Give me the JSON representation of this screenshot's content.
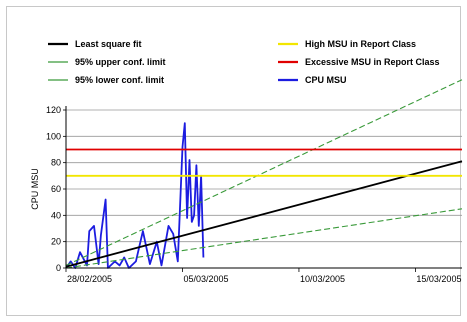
{
  "chart_data": {
    "type": "line",
    "title": "",
    "xlabel": "",
    "ylabel": "CPU MSU",
    "ylim": [
      0,
      120
    ],
    "y_ticks": [
      "0",
      "20",
      "40",
      "60",
      "80",
      "100",
      "120"
    ],
    "x_ticks": [
      "28/02/2005",
      "05/03/2005",
      "10/03/2005",
      "15/03/2005"
    ],
    "xlim": [
      "2005-02-28",
      "2005-03-17"
    ],
    "grid": true,
    "legend_position": "top",
    "legend": [
      {
        "label": "Least square fit",
        "color": "#000000"
      },
      {
        "label": "High MSU in Report Class",
        "color": "#f2e600"
      },
      {
        "label": "95% upper conf. limit",
        "color": "#3a9a3a"
      },
      {
        "label": "Excessive MSU in Report Class",
        "color": "#e00000"
      },
      {
        "label": "95% lower conf. limit",
        "color": "#3a9a3a"
      },
      {
        "label": "CPU MSU",
        "color": "#1c1ce0"
      }
    ],
    "series": [
      {
        "name": "CPU MSU",
        "color": "#1c1ce0",
        "x": [
          "2005-02-28T00:00",
          "2005-02-28T04:48",
          "2005-02-28T09:36",
          "2005-02-28T14:24",
          "2005-02-28T21:36",
          "2005-03-01T00:00",
          "2005-03-01T04:48",
          "2005-03-01T09:36",
          "2005-03-01T12:00",
          "2005-03-01T16:48",
          "2005-03-01T19:12",
          "2005-03-02T02:24",
          "2005-03-02T07:12",
          "2005-03-02T12:00",
          "2005-03-02T16:48",
          "2005-03-03T00:00",
          "2005-03-03T07:12",
          "2005-03-03T14:24",
          "2005-03-03T21:36",
          "2005-03-04T02:24",
          "2005-03-04T09:36",
          "2005-03-04T14:24",
          "2005-03-04T19:12",
          "2005-03-05T00:00",
          "2005-03-05T02:24",
          "2005-03-05T04:48",
          "2005-03-05T07:12",
          "2005-03-05T09:36",
          "2005-03-05T12:00",
          "2005-03-05T14:24",
          "2005-03-05T16:48",
          "2005-03-05T19:12",
          "2005-03-05T21:36"
        ],
        "values": [
          0,
          5,
          0,
          12,
          2,
          28,
          32,
          3,
          25,
          52,
          0,
          5,
          2,
          8,
          0,
          5,
          28,
          3,
          20,
          2,
          32,
          26,
          5,
          92,
          110,
          38,
          82,
          35,
          40,
          78,
          32,
          70,
          8
        ]
      },
      {
        "name": "Least square fit",
        "color": "#000000",
        "x": [
          "2005-02-28",
          "2005-03-17"
        ],
        "values": [
          1,
          81
        ]
      },
      {
        "name": "95% upper conf. limit",
        "color": "#3a9a3a",
        "dashed": true,
        "x": [
          "2005-02-28",
          "2005-03-17"
        ],
        "values": [
          2,
          143
        ]
      },
      {
        "name": "95% lower conf. limit",
        "color": "#3a9a3a",
        "dashed": true,
        "x": [
          "2005-02-28",
          "2005-03-17"
        ],
        "values": [
          0,
          45
        ]
      },
      {
        "name": "High MSU in Report Class",
        "color": "#f2e600",
        "x": [
          "2005-02-28",
          "2005-03-17"
        ],
        "values": [
          70,
          70
        ]
      },
      {
        "name": "Excessive MSU in Report Class",
        "color": "#e00000",
        "x": [
          "2005-02-28",
          "2005-03-17"
        ],
        "values": [
          90,
          90
        ]
      }
    ]
  }
}
